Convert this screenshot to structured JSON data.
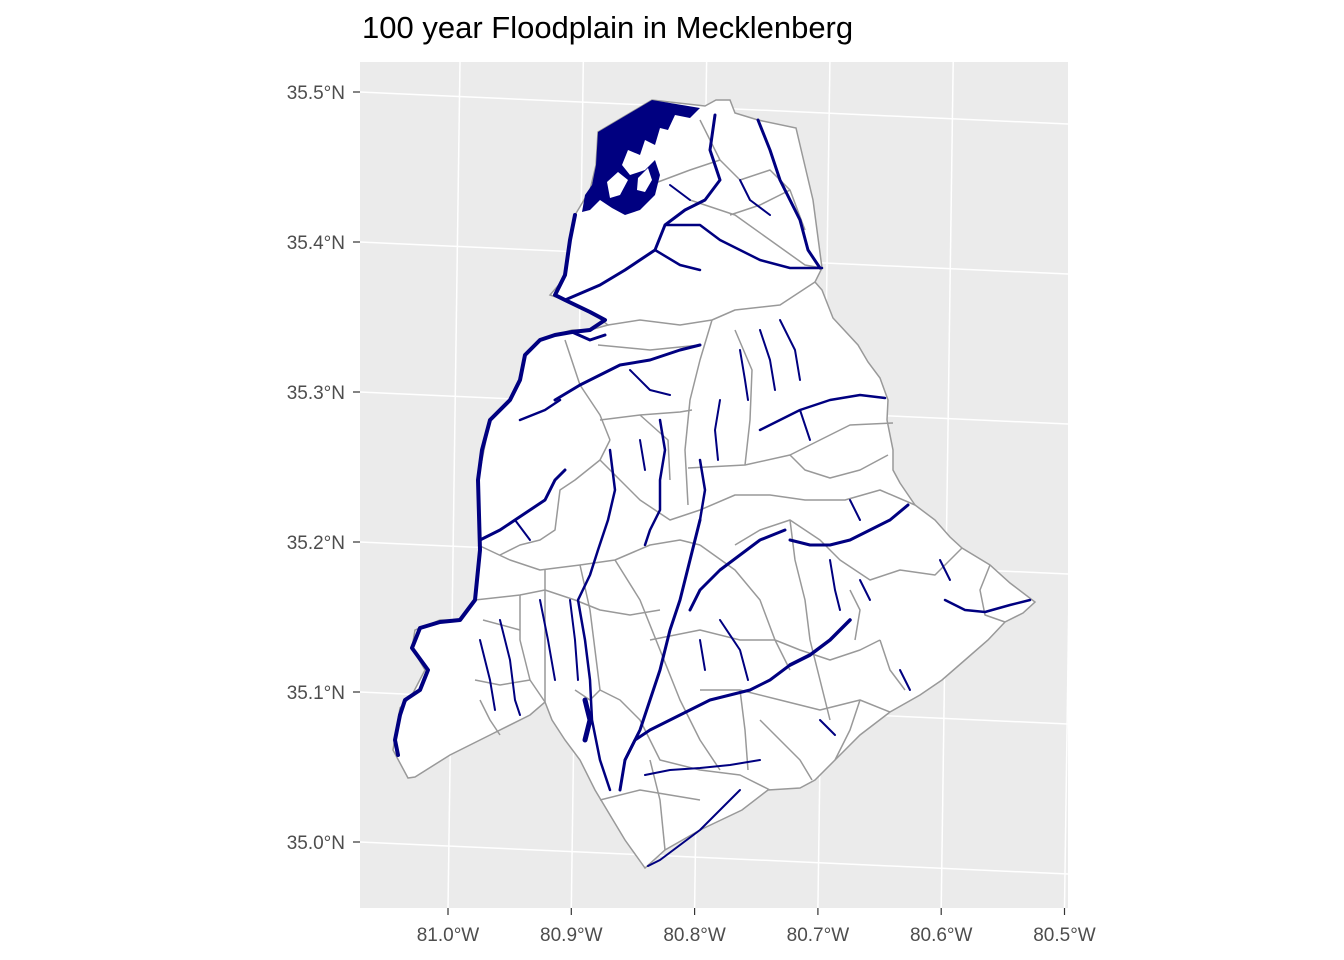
{
  "title": "100 year Floodplain in Mecklenberg",
  "axes": {
    "lat_labels": [
      {
        "value": 35.5,
        "label": "35.5°N"
      },
      {
        "value": 35.4,
        "label": "35.4°N"
      },
      {
        "value": 35.3,
        "label": "35.3°N"
      },
      {
        "value": 35.2,
        "label": "35.2°N"
      },
      {
        "value": 35.1,
        "label": "35.1°N"
      },
      {
        "value": 35.0,
        "label": "35.0°N"
      }
    ],
    "lon_labels": [
      {
        "value": -81.0,
        "label": "81.0°W"
      },
      {
        "value": -80.9,
        "label": "80.9°W"
      },
      {
        "value": -80.8,
        "label": "80.8°W"
      },
      {
        "value": -80.7,
        "label": "80.7°W"
      },
      {
        "value": -80.6,
        "label": "80.6°W"
      },
      {
        "value": -80.5,
        "label": "80.5°W"
      }
    ]
  },
  "colors": {
    "panel_background": "#ebebeb",
    "gridline": "#ffffff",
    "county_fill": "#ffffff",
    "boundary": "#999999",
    "floodplain": "#000080"
  }
}
